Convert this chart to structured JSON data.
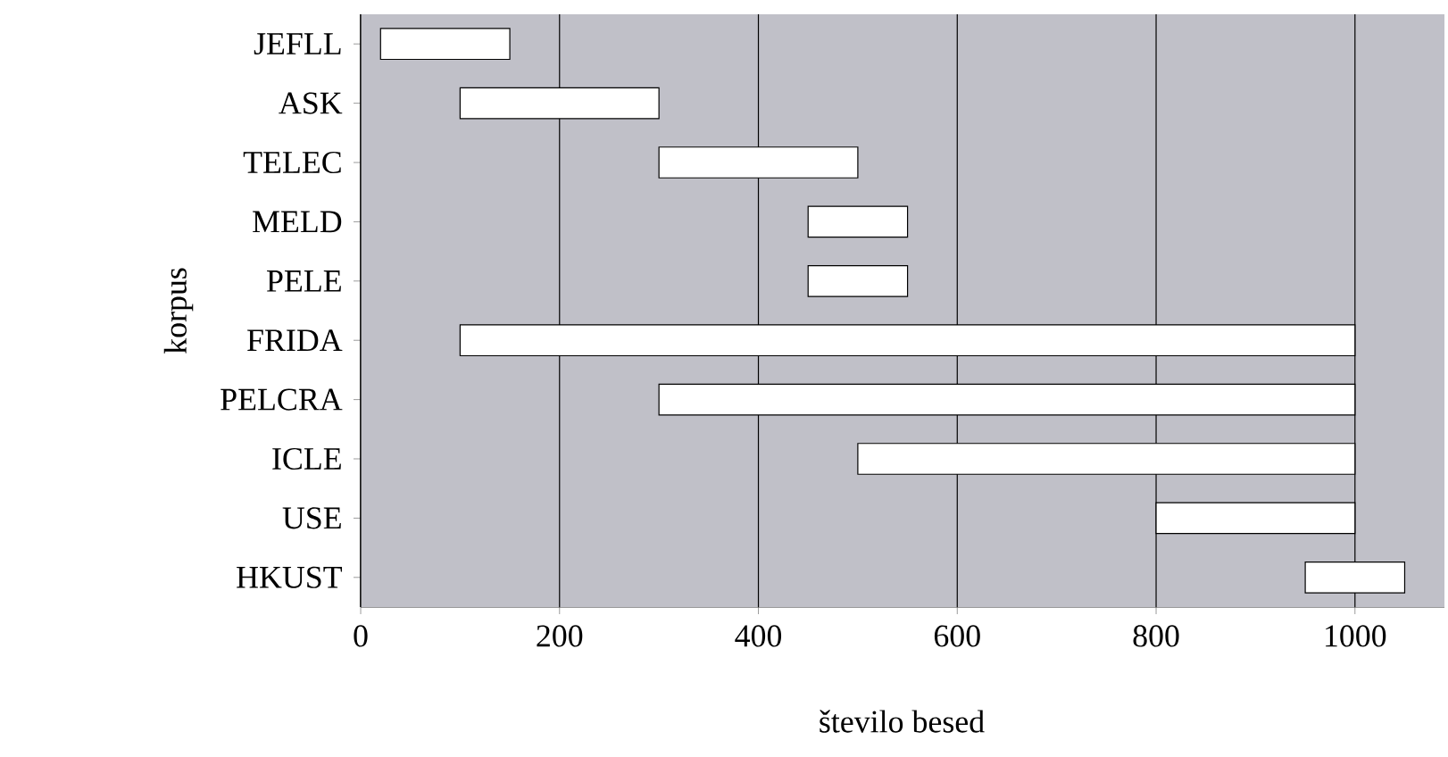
{
  "chart_data": {
    "type": "bar",
    "orientation": "horizontal",
    "xlabel": "število besed",
    "ylabel": "korpus",
    "categories": [
      "JEFLL",
      "ASK",
      "TELEC",
      "MELD",
      "PELE",
      "FRIDA",
      "PELCRA",
      "ICLE",
      "USE",
      "HKUST"
    ],
    "base": [
      20,
      100,
      300,
      450,
      450,
      100,
      300,
      500,
      800,
      950
    ],
    "values": [
      130,
      200,
      200,
      100,
      100,
      900,
      700,
      500,
      200,
      100
    ],
    "color": "#ffffff",
    "xlim": [
      0,
      1090
    ],
    "xticks": [
      0,
      200,
      400,
      600,
      800,
      1000
    ],
    "grid": "x"
  }
}
